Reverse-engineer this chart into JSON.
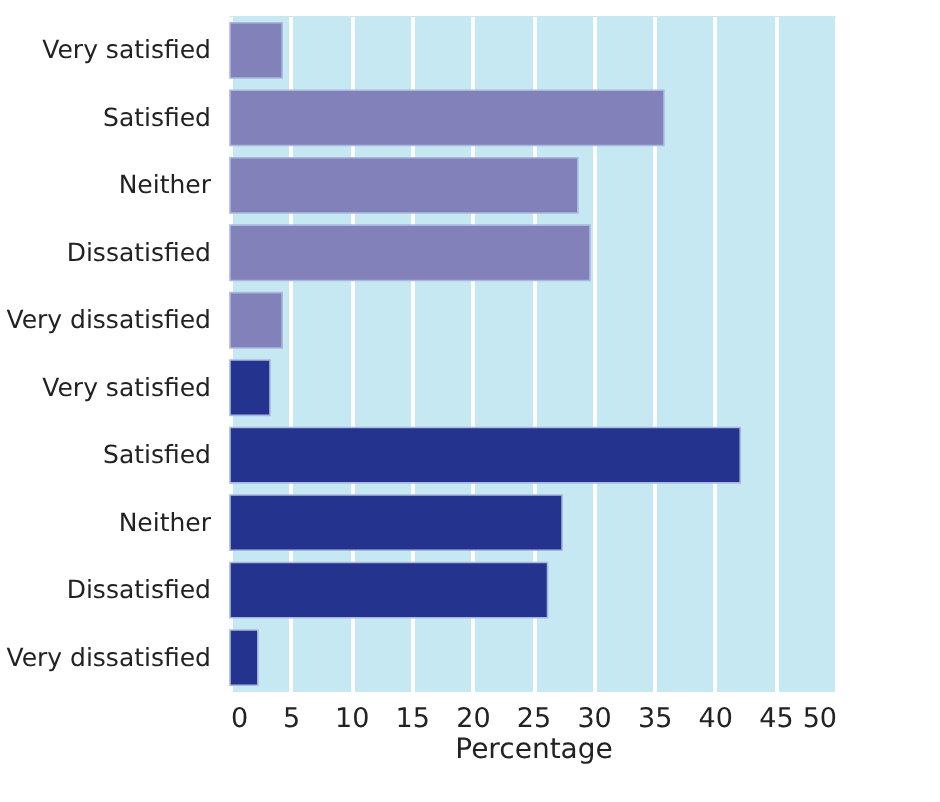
{
  "chart_data": {
    "type": "bar",
    "orientation": "horizontal",
    "xlabel": "Percentage",
    "categories": [
      "Very satisfied",
      "Satisfied",
      "Neither",
      "Dissatisfied",
      "Very dissatisfied",
      "Very satisfied",
      "Satisfied",
      "Neither",
      "Dissatisfied",
      "Very dissatisfied"
    ],
    "values": [
      4.3,
      35.8,
      28.7,
      29.7,
      4.3,
      3.3,
      42.1,
      27.4,
      26.2,
      2.3
    ],
    "colors": [
      "#8381b9",
      "#8381b9",
      "#8381b9",
      "#8381b9",
      "#8381b9",
      "#24348e",
      "#24348e",
      "#24348e",
      "#24348e",
      "#24348e"
    ],
    "xlim": [
      0,
      50
    ],
    "xticks": [
      0,
      5,
      10,
      15,
      20,
      25,
      30,
      35,
      40,
      45,
      50
    ],
    "grid": "x"
  }
}
